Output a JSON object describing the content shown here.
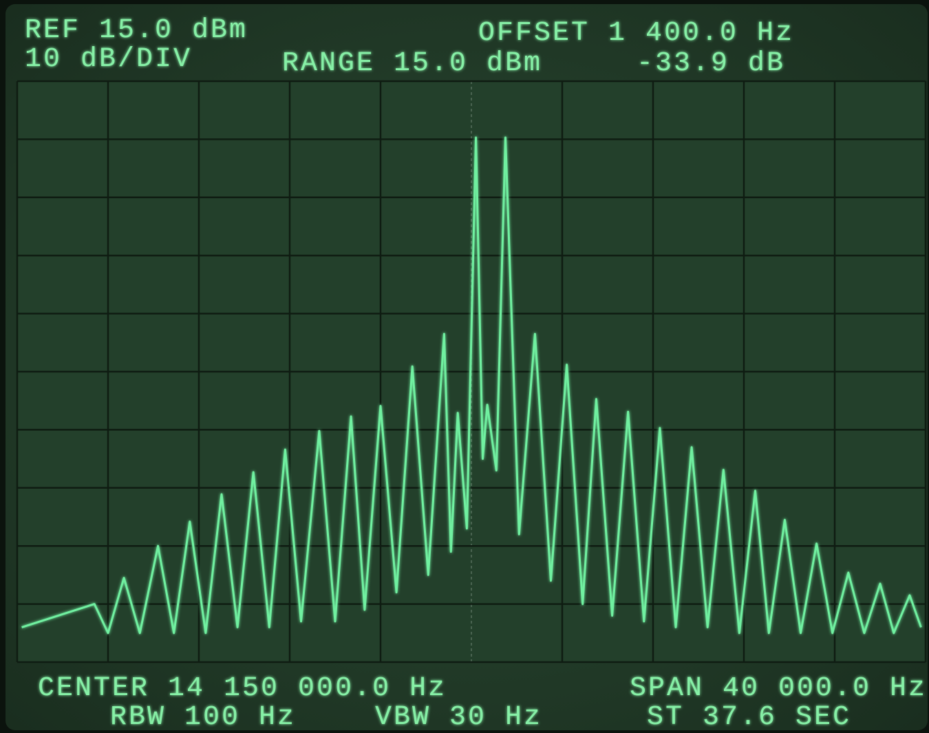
{
  "chart_data": {
    "type": "line",
    "ref": "REF 15.0 dBm",
    "scale": "10 dB/DIV",
    "range": "RANGE 15.0 dBm",
    "offset": "OFFSET 1 400.0 Hz",
    "delta": "-33.9 dB",
    "center": "CENTER 14 150 000.0 Hz",
    "span": "SPAN 40 000.0 Hz",
    "rbw": "RBW 100 Hz",
    "vbw": "VBW 30 Hz",
    "sweep": "ST 37.6 SEC",
    "color": "#6ff0a0",
    "grid": true,
    "xlim": [
      14130000,
      14170000
    ],
    "ylim": [
      -85,
      15
    ],
    "xticks": [
      14130000,
      14134000,
      14138000,
      14142000,
      14146000,
      14150000,
      14154000,
      14158000,
      14162000,
      14166000,
      14170000
    ],
    "yticks": [
      -85,
      -75,
      -65,
      -55,
      -45,
      -35,
      -25,
      -15,
      -5,
      5,
      15
    ],
    "x": [
      14130200,
      14133400,
      14134000,
      14134700,
      14135400,
      14136200,
      14136900,
      14137600,
      14138300,
      14139000,
      14139700,
      14140400,
      14141100,
      14141800,
      14142500,
      14143300,
      14144000,
      14144700,
      14145300,
      14146000,
      14146700,
      14147400,
      14148100,
      14148800,
      14149100,
      14149400,
      14149800,
      14150200,
      14150500,
      14150700,
      14151100,
      14151500,
      14152100,
      14152800,
      14153500,
      14154200,
      14154900,
      14155500,
      14156200,
      14156900,
      14157600,
      14158300,
      14159000,
      14159700,
      14160400,
      14161100,
      14161800,
      14162500,
      14163100,
      14163800,
      14164500,
      14165200,
      14165900,
      14166600,
      14167300,
      14168000,
      14168600,
      14169300,
      14169800
    ],
    "values": [
      -79,
      -75,
      -80,
      -70.5,
      -80,
      -65,
      -80,
      -60.8,
      -80,
      -56.1,
      -79,
      -52.3,
      -79,
      -48.4,
      -78,
      -45.2,
      -78,
      -42.7,
      -76,
      -40.9,
      -73,
      -34.1,
      -70,
      -28.5,
      -66,
      -42.1,
      -62,
      5.3,
      -50,
      -40.7,
      -52,
      5.3,
      -63,
      -28.5,
      -71,
      -33.8,
      -75,
      -39.7,
      -77,
      -41.9,
      -78,
      -44.7,
      -79,
      -48,
      -79,
      -51.9,
      -80,
      -55.5,
      -80,
      -60.5,
      -80,
      -64.6,
      -80,
      -69.6,
      -80,
      -71.5,
      -80,
      -73.5,
      -79
    ]
  }
}
